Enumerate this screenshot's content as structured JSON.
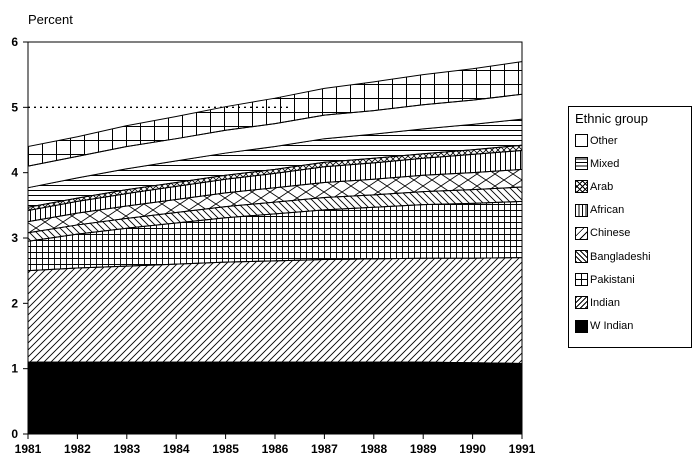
{
  "chart_data": {
    "type": "area",
    "stacked": true,
    "ylabel": "Percent",
    "xlabel": "",
    "x": [
      "1981",
      "1982",
      "1983",
      "1984",
      "1985",
      "1986",
      "1987",
      "1988",
      "1989",
      "1990",
      "1991"
    ],
    "xlim": [
      1981,
      1991
    ],
    "ylim": [
      0,
      6
    ],
    "yticks": [
      "0",
      "1",
      "2",
      "3",
      "4",
      "5",
      "6"
    ],
    "reference_line": {
      "y": 5,
      "style": "dotted",
      "x_range": [
        1981,
        1986.3
      ]
    },
    "legend": {
      "title": "Ethnic group",
      "placement": "right"
    },
    "series": [
      {
        "name": "W Indian",
        "pattern": "solid",
        "values": [
          1.1,
          1.1,
          1.1,
          1.1,
          1.1,
          1.1,
          1.1,
          1.1,
          1.1,
          1.09,
          1.08
        ]
      },
      {
        "name": "Indian",
        "pattern": "diagonal",
        "values": [
          1.4,
          1.44,
          1.47,
          1.5,
          1.53,
          1.55,
          1.57,
          1.58,
          1.59,
          1.6,
          1.62
        ]
      },
      {
        "name": "Pakistani",
        "pattern": "grid",
        "values": [
          0.45,
          0.52,
          0.58,
          0.63,
          0.68,
          0.72,
          0.76,
          0.79,
          0.82,
          0.84,
          0.86
        ]
      },
      {
        "name": "Bangladeshi",
        "pattern": "back-diagonal",
        "values": [
          0.13,
          0.14,
          0.15,
          0.16,
          0.17,
          0.18,
          0.19,
          0.19,
          0.2,
          0.21,
          0.22
        ]
      },
      {
        "name": "Chinese",
        "pattern": "chevron",
        "values": [
          0.17,
          0.18,
          0.19,
          0.2,
          0.21,
          0.22,
          0.23,
          0.24,
          0.25,
          0.26,
          0.27
        ]
      },
      {
        "name": "African",
        "pattern": "vertical",
        "values": [
          0.17,
          0.18,
          0.19,
          0.2,
          0.21,
          0.22,
          0.24,
          0.25,
          0.26,
          0.28,
          0.29
        ]
      },
      {
        "name": "Arab",
        "pattern": "cross",
        "values": [
          0.05,
          0.05,
          0.06,
          0.06,
          0.06,
          0.06,
          0.07,
          0.07,
          0.07,
          0.07,
          0.08
        ]
      },
      {
        "name": "Mixed",
        "pattern": "horizontal",
        "values": [
          0.3,
          0.31,
          0.32,
          0.33,
          0.34,
          0.35,
          0.36,
          0.37,
          0.38,
          0.39,
          0.4
        ]
      },
      {
        "name": "Other",
        "pattern": "blank",
        "values": [
          0.33,
          0.33,
          0.34,
          0.34,
          0.35,
          0.35,
          0.36,
          0.36,
          0.37,
          0.37,
          0.38
        ]
      }
    ],
    "top_band": {
      "name": "",
      "pattern": "boxes",
      "values": [
        0.3,
        0.3,
        0.32,
        0.34,
        0.36,
        0.39,
        0.41,
        0.44,
        0.46,
        0.48,
        0.5
      ]
    }
  }
}
